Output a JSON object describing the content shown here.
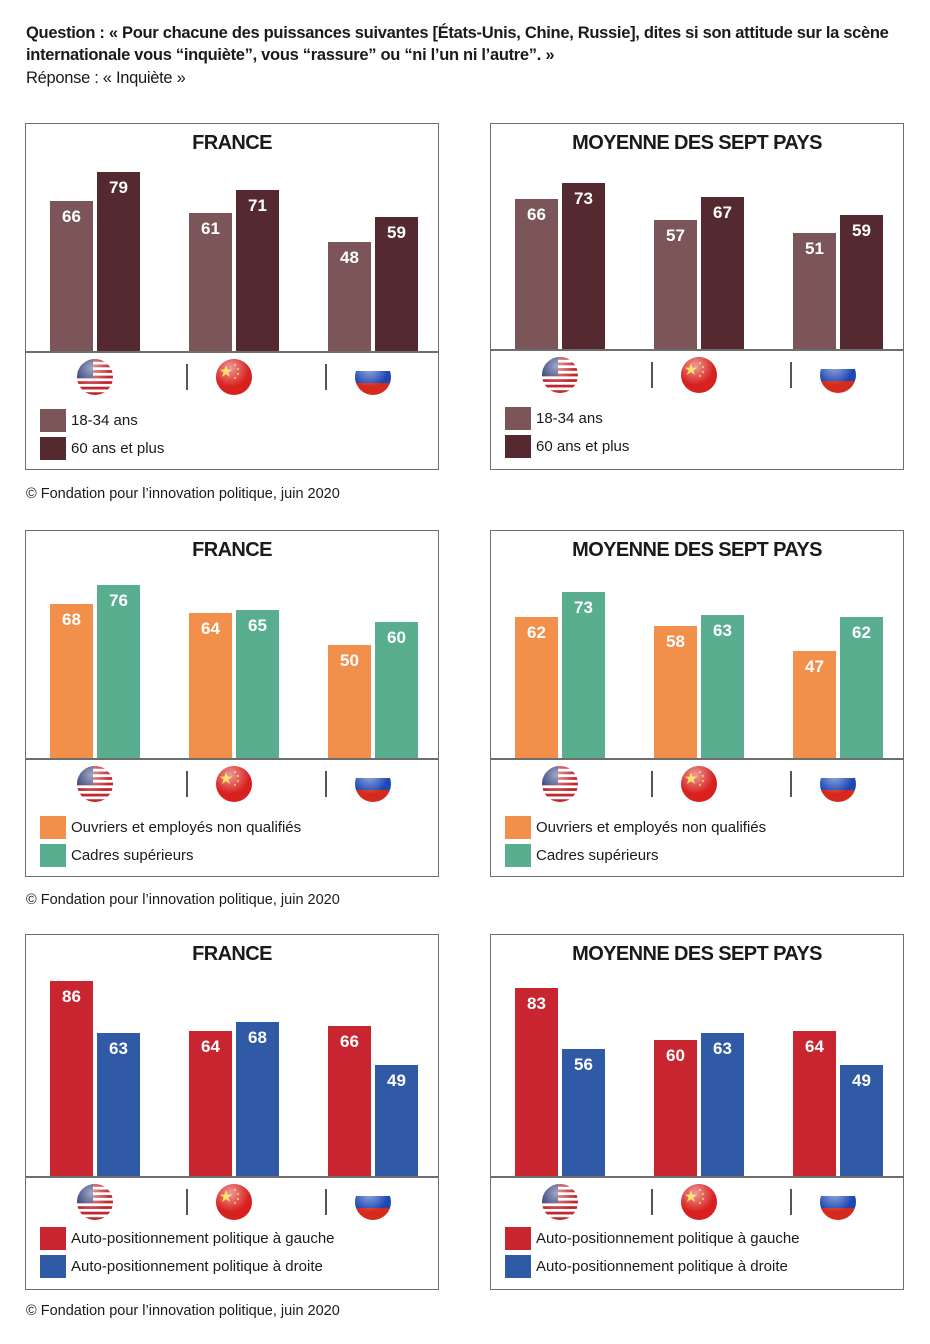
{
  "header": {
    "question": "Question : « Pour chacune des puissances suivantes [États-Unis, Chine, Russie], dites si son attitude sur la scène internationale vous “inquiète”, vous “rassure” ou “ni l’un ni l’autre”. »",
    "answer": "Réponse : « Inquiète »"
  },
  "source": "© Fondation pour l’innovation politique, juin 2020",
  "countries": [
    {
      "name": "États-Unis",
      "icon": "us-flag-icon"
    },
    {
      "name": "Chine",
      "icon": "china-flag-icon"
    },
    {
      "name": "Russie",
      "icon": "russia-flag-icon"
    }
  ],
  "chart_data": [
    {
      "type": "bar",
      "title": "FRANCE",
      "group": "age",
      "categories": [
        "États-Unis",
        "Chine",
        "Russie"
      ],
      "series": [
        {
          "name": "18-34 ans",
          "color": "#7b5558",
          "values": [
            66,
            61,
            48
          ]
        },
        {
          "name": "60 ans et plus",
          "color": "#542a30",
          "values": [
            79,
            71,
            59
          ]
        }
      ],
      "ylim": [
        0,
        100
      ],
      "grid": false,
      "legend": "bottom-left"
    },
    {
      "type": "bar",
      "title": "MOYENNE DES SEPT PAYS",
      "group": "age",
      "categories": [
        "États-Unis",
        "Chine",
        "Russie"
      ],
      "series": [
        {
          "name": "18-34 ans",
          "color": "#7b5558",
          "values": [
            66,
            57,
            51
          ]
        },
        {
          "name": "60 ans et plus",
          "color": "#542a30",
          "values": [
            73,
            67,
            59
          ]
        }
      ],
      "ylim": [
        0,
        100
      ],
      "grid": false,
      "legend": "bottom-left"
    },
    {
      "type": "bar",
      "title": "FRANCE",
      "group": "profession",
      "categories": [
        "États-Unis",
        "Chine",
        "Russie"
      ],
      "series": [
        {
          "name": "Ouvriers et employés non qualifiés",
          "color": "#f28f4a",
          "values": [
            68,
            64,
            50
          ]
        },
        {
          "name": "Cadres supérieurs",
          "color": "#58ae8f",
          "values": [
            76,
            65,
            60
          ]
        }
      ],
      "ylim": [
        0,
        100
      ],
      "grid": false,
      "legend": "bottom-left"
    },
    {
      "type": "bar",
      "title": "MOYENNE DES SEPT PAYS",
      "group": "profession",
      "categories": [
        "États-Unis",
        "Chine",
        "Russie"
      ],
      "series": [
        {
          "name": "Ouvriers et employés non qualifiés",
          "color": "#f28f4a",
          "values": [
            62,
            58,
            47
          ]
        },
        {
          "name": "Cadres supérieurs",
          "color": "#58ae8f",
          "values": [
            73,
            63,
            62
          ]
        }
      ],
      "ylim": [
        0,
        100
      ],
      "grid": false,
      "legend": "bottom-left"
    },
    {
      "type": "bar",
      "title": "FRANCE",
      "group": "politics",
      "categories": [
        "États-Unis",
        "Chine",
        "Russie"
      ],
      "series": [
        {
          "name": "Auto-positionnement politique à gauche",
          "color": "#c82530",
          "values": [
            86,
            64,
            66
          ]
        },
        {
          "name": "Auto-positionnement politique à droite",
          "color": "#305aa5",
          "values": [
            63,
            68,
            49
          ]
        }
      ],
      "ylim": [
        0,
        100
      ],
      "grid": false,
      "legend": "bottom-left"
    },
    {
      "type": "bar",
      "title": "MOYENNE DES SEPT PAYS",
      "group": "politics",
      "categories": [
        "États-Unis",
        "Chine",
        "Russie"
      ],
      "series": [
        {
          "name": "Auto-positionnement politique à gauche",
          "color": "#c82530",
          "values": [
            83,
            60,
            64
          ]
        },
        {
          "name": "Auto-positionnement politique à droite",
          "color": "#305aa5",
          "values": [
            56,
            63,
            49
          ]
        }
      ],
      "ylim": [
        0,
        100
      ],
      "grid": false,
      "legend": "bottom-left"
    }
  ]
}
